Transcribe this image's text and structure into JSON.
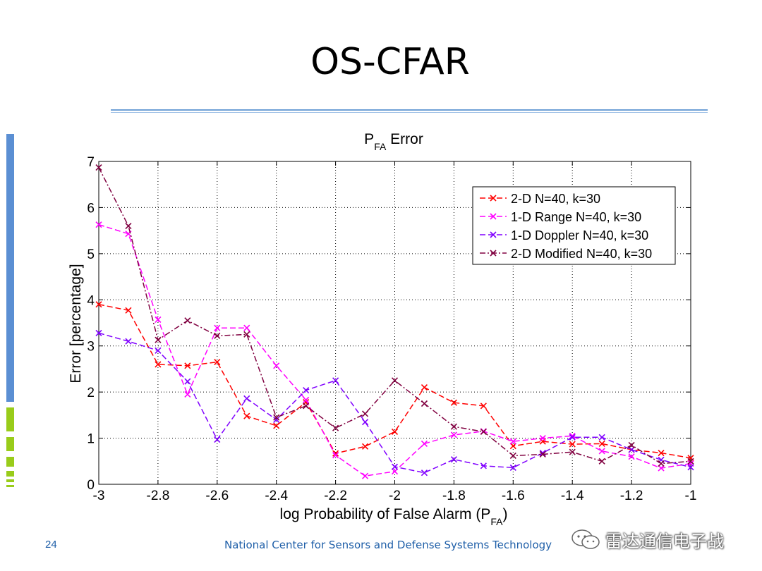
{
  "slide": {
    "title": "OS-CFAR",
    "page_number": "24",
    "footer": "National Center for Sensors and Defense Systems Technology",
    "watermark": "雷达通信电子战"
  },
  "chart_data": {
    "type": "line",
    "title_main": "P",
    "title_sub": "FA",
    "title_rest": " Error",
    "xlabel_main": "log Probability of False Alarm (P",
    "xlabel_sub": "FA",
    "xlabel_end": ")",
    "ylabel": "Error [percentage]",
    "xlim": [
      -3,
      -1
    ],
    "ylim": [
      0,
      7
    ],
    "grid": true,
    "legend_position": "top-right",
    "xticks": [
      -3,
      -2.8,
      -2.6,
      -2.4,
      -2.2,
      -2,
      -1.8,
      -1.6,
      -1.4,
      -1.2,
      -1
    ],
    "xtick_labels": [
      "-3",
      "-2.8",
      "-2.6",
      "-2.4",
      "-2.2",
      "-2",
      "-1.8",
      "-1.6",
      "-1.4",
      "-1.2",
      "-1"
    ],
    "yticks": [
      0,
      1,
      2,
      3,
      4,
      5,
      6,
      7
    ],
    "ytick_labels": [
      "0",
      "1",
      "2",
      "3",
      "4",
      "5",
      "6",
      "7"
    ],
    "x": [
      -3,
      -2.9,
      -2.8,
      -2.7,
      -2.6,
      -2.5,
      -2.4,
      -2.3,
      -2.2,
      -2.1,
      -2,
      -1.9,
      -1.8,
      -1.7,
      -1.6,
      -1.5,
      -1.4,
      -1.3,
      -1.2,
      -1.1,
      -1
    ],
    "series": [
      {
        "name": "2-D N=40, k=30",
        "color": "#ff0000",
        "dash": "dashed",
        "values": [
          3.9,
          3.77,
          2.6,
          2.57,
          2.65,
          1.48,
          1.27,
          1.78,
          0.67,
          0.82,
          1.14,
          2.1,
          1.77,
          1.7,
          0.83,
          0.93,
          0.87,
          0.88,
          0.75,
          0.68,
          0.57
        ]
      },
      {
        "name": "1-D Range N=40, k=30",
        "color": "#ff00ff",
        "dash": "dashed",
        "values": [
          5.63,
          5.43,
          3.57,
          1.95,
          3.39,
          3.39,
          2.57,
          1.83,
          0.63,
          0.18,
          0.28,
          0.88,
          1.07,
          1.15,
          0.93,
          1.0,
          1.05,
          0.72,
          0.6,
          0.35,
          0.45
        ]
      },
      {
        "name": "1-D Doppler N=40, k=30",
        "color": "#8000ff",
        "dash": "dashed",
        "values": [
          3.28,
          3.1,
          2.9,
          2.23,
          0.97,
          1.86,
          1.4,
          2.04,
          2.25,
          1.35,
          0.38,
          0.25,
          0.54,
          0.4,
          0.36,
          0.68,
          1.02,
          1.02,
          0.75,
          0.53,
          0.37
        ]
      },
      {
        "name": "2-D Modified N=40, k=30",
        "color": "#800040",
        "dash": "dashdot",
        "values": [
          6.87,
          5.6,
          3.13,
          3.55,
          3.22,
          3.25,
          1.45,
          1.7,
          1.22,
          1.53,
          2.25,
          1.75,
          1.25,
          1.14,
          0.62,
          0.65,
          0.7,
          0.5,
          0.85,
          0.45,
          0.5
        ]
      }
    ]
  }
}
